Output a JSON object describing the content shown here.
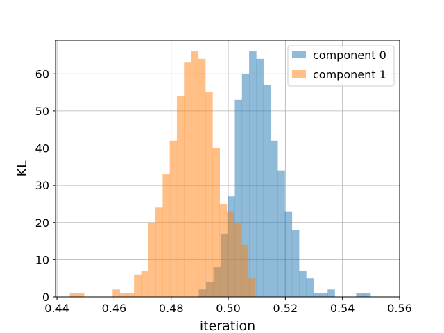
{
  "chart_data": {
    "type": "bar",
    "title": "",
    "xlabel": "iteration",
    "ylabel": "KL",
    "xlim": [
      0.4395,
      0.56
    ],
    "ylim": [
      0,
      69
    ],
    "grid": true,
    "legend_position": "top-right",
    "x_ticks": [
      0.44,
      0.46,
      0.48,
      0.5,
      0.52,
      0.54,
      0.56
    ],
    "x_tick_labels": [
      "0.44",
      "0.46",
      "0.48",
      "0.50",
      "0.52",
      "0.54",
      "0.56"
    ],
    "y_ticks": [
      0,
      10,
      20,
      30,
      40,
      50,
      60
    ],
    "y_tick_labels": [
      "0",
      "10",
      "20",
      "30",
      "40",
      "50",
      "60"
    ],
    "series": [
      {
        "name": "component 0",
        "color": "#1f77b4",
        "alpha": 0.5,
        "bin_edges": [
          0.4897,
          0.4922,
          0.4948,
          0.4973,
          0.4998,
          0.5023,
          0.5048,
          0.5073,
          0.5098,
          0.5123,
          0.5148,
          0.5173,
          0.5198,
          0.5223,
          0.5248,
          0.5273,
          0.5298,
          0.5323,
          0.5348,
          0.5373,
          0.5398,
          0.5423,
          0.5448,
          0.5473,
          0.5498,
          0.5523,
          0.5548
        ],
        "counts": [
          2,
          4,
          8,
          17,
          27,
          53,
          60,
          66,
          64,
          57,
          42,
          34,
          23,
          18,
          7,
          5,
          1,
          1,
          2,
          0,
          0,
          0,
          1,
          1,
          0,
          0
        ]
      },
      {
        "name": "component 1",
        "color": "#ff7f0e",
        "alpha": 0.5,
        "bin_edges": [
          0.4445,
          0.447,
          0.4495,
          0.452,
          0.4545,
          0.457,
          0.4595,
          0.462,
          0.4645,
          0.467,
          0.4695,
          0.472,
          0.4745,
          0.477,
          0.4795,
          0.482,
          0.4845,
          0.487,
          0.4895,
          0.492,
          0.4945,
          0.497,
          0.4995,
          0.502,
          0.5045,
          0.507,
          0.5095
        ],
        "counts": [
          1,
          1,
          0,
          0,
          0,
          0,
          2,
          1,
          1,
          6,
          7,
          20,
          24,
          33,
          42,
          54,
          63,
          66,
          64,
          55,
          40,
          25,
          23,
          20,
          14,
          5
        ]
      }
    ]
  }
}
